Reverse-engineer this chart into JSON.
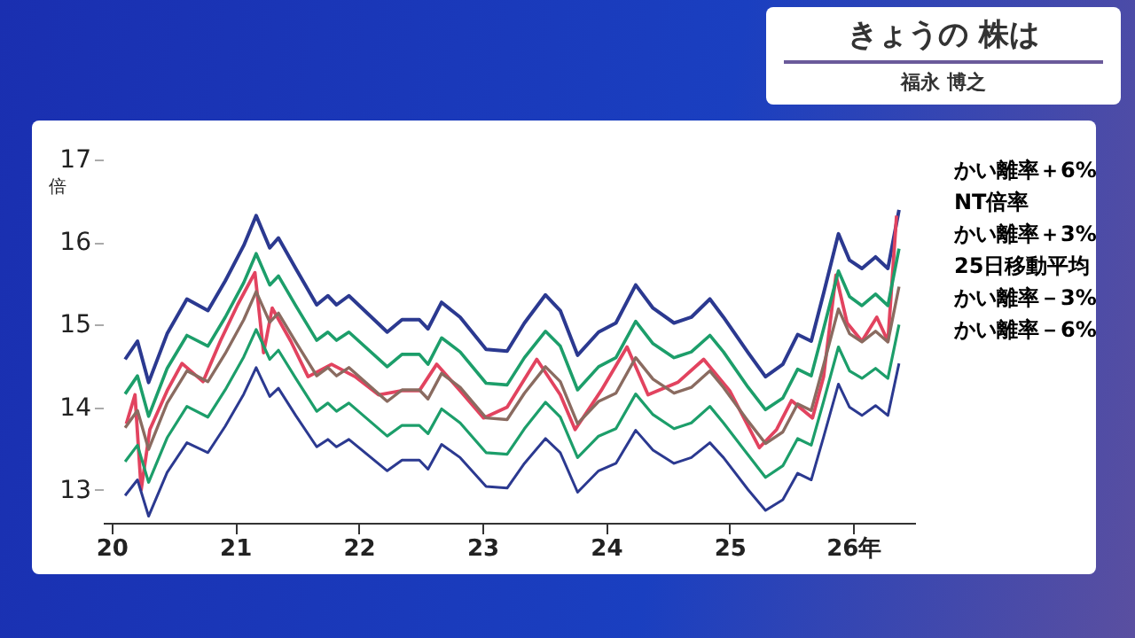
{
  "chart_data": {
    "type": "line",
    "title": "きょうの 株は",
    "subtitle": "福永 博之",
    "ylabel": "倍",
    "xlim": [
      19.93,
      26.5
    ],
    "ylim": [
      12.6,
      17
    ],
    "xticks": [
      20,
      21,
      22,
      23,
      24,
      25,
      {
        "value": 26,
        "label": "26年"
      }
    ],
    "yticks": [
      13,
      14,
      15,
      16,
      17
    ],
    "x": [
      20.11,
      20.21,
      20.3,
      20.45,
      20.61,
      20.78,
      20.92,
      21.07,
      21.17,
      21.28,
      21.35,
      21.49,
      21.66,
      21.75,
      21.82,
      21.92,
      22.23,
      22.35,
      22.49,
      22.56,
      22.67,
      22.82,
      23.03,
      23.2,
      23.34,
      23.51,
      23.63,
      23.77,
      23.94,
      24.08,
      24.24,
      24.38,
      24.55,
      24.69,
      24.84,
      24.95,
      25.15,
      25.29,
      25.43,
      25.55,
      25.66,
      25.76,
      25.88,
      25.97,
      26.07,
      26.18,
      26.28,
      26.37
    ],
    "grid": false,
    "legend": "right",
    "line_style": "solid",
    "marker": "none",
    "series": [
      {
        "name": "かい離率＋6%",
        "color": "#2b3990",
        "values": [
          14.58,
          14.8,
          14.3,
          14.89,
          15.31,
          15.17,
          15.53,
          15.96,
          16.32,
          15.93,
          16.05,
          15.68,
          15.24,
          15.35,
          15.24,
          15.35,
          14.91,
          15.06,
          15.06,
          14.95,
          15.27,
          15.09,
          14.7,
          14.68,
          15.02,
          15.36,
          15.17,
          14.63,
          14.91,
          15.02,
          15.48,
          15.2,
          15.02,
          15.09,
          15.31,
          15.09,
          14.66,
          14.37,
          14.52,
          14.88,
          14.8,
          15.38,
          16.1,
          15.78,
          15.68,
          15.82,
          15.68,
          16.39
        ]
      },
      {
        "name": "NT倍率",
        "color": "#e2435f",
        "x": [
          20.12,
          20.19,
          20.24,
          20.31,
          20.45,
          20.57,
          20.74,
          20.88,
          21.02,
          21.16,
          21.23,
          21.3,
          21.45,
          21.59,
          21.78,
          21.97,
          22.16,
          22.35,
          22.49,
          22.63,
          22.82,
          23.01,
          23.2,
          23.44,
          23.63,
          23.75,
          23.96,
          24.17,
          24.34,
          24.58,
          24.79,
          25.0,
          25.24,
          25.38,
          25.5,
          25.67,
          25.76,
          25.86,
          25.95,
          26.07,
          26.19,
          26.28,
          26.35
        ],
        "values": [
          13.8,
          14.15,
          13.0,
          13.73,
          14.2,
          14.53,
          14.31,
          14.8,
          15.24,
          15.63,
          14.66,
          15.2,
          14.8,
          14.37,
          14.52,
          14.37,
          14.15,
          14.2,
          14.2,
          14.52,
          14.2,
          13.87,
          14.0,
          14.58,
          14.15,
          13.73,
          14.2,
          14.73,
          14.15,
          14.3,
          14.58,
          14.2,
          13.51,
          13.73,
          14.08,
          13.87,
          14.37,
          15.6,
          15.02,
          14.8,
          15.09,
          14.8,
          16.32
        ]
      },
      {
        "name": "かい離率＋3%",
        "color": "#1c9e6a",
        "values": [
          14.16,
          14.38,
          13.89,
          14.47,
          14.87,
          14.74,
          15.09,
          15.51,
          15.86,
          15.48,
          15.59,
          15.23,
          14.81,
          14.91,
          14.81,
          14.91,
          14.49,
          14.64,
          14.64,
          14.52,
          14.84,
          14.67,
          14.29,
          14.27,
          14.6,
          14.92,
          14.74,
          14.21,
          14.49,
          14.6,
          15.04,
          14.77,
          14.6,
          14.67,
          14.87,
          14.67,
          14.24,
          13.97,
          14.11,
          14.46,
          14.38,
          14.95,
          15.65,
          15.34,
          15.23,
          15.37,
          15.23,
          15.92
        ]
      },
      {
        "name": "25日移動平均",
        "color": "#8a6b60",
        "values": [
          13.75,
          13.96,
          13.49,
          14.05,
          14.44,
          14.31,
          14.65,
          15.06,
          15.4,
          15.03,
          15.14,
          14.79,
          14.38,
          14.48,
          14.38,
          14.48,
          14.07,
          14.21,
          14.21,
          14.1,
          14.41,
          14.24,
          13.87,
          13.85,
          14.17,
          14.49,
          14.31,
          13.8,
          14.07,
          14.17,
          14.6,
          14.34,
          14.17,
          14.24,
          14.44,
          14.24,
          13.83,
          13.56,
          13.7,
          14.04,
          13.96,
          14.51,
          15.19,
          14.89,
          14.79,
          14.92,
          14.79,
          15.46
        ]
      },
      {
        "name": "かい離率－3%",
        "color": "#1c9e6a",
        "values": [
          13.34,
          13.54,
          13.09,
          13.63,
          14.01,
          13.88,
          14.21,
          14.61,
          14.94,
          14.58,
          14.69,
          14.35,
          13.95,
          14.05,
          13.95,
          14.05,
          13.65,
          13.78,
          13.78,
          13.68,
          13.98,
          13.81,
          13.45,
          13.43,
          13.74,
          14.06,
          13.88,
          13.39,
          13.65,
          13.74,
          14.16,
          13.91,
          13.74,
          13.81,
          14.01,
          13.81,
          13.42,
          13.15,
          13.29,
          13.62,
          13.54,
          14.07,
          14.73,
          14.44,
          14.35,
          14.47,
          14.35,
          15.0
        ]
      },
      {
        "name": "かい離率－6%",
        "color": "#2b3990",
        "values": [
          12.93,
          13.12,
          12.68,
          13.21,
          13.57,
          13.45,
          13.77,
          14.16,
          14.48,
          14.13,
          14.23,
          13.9,
          13.52,
          13.61,
          13.52,
          13.61,
          13.23,
          13.36,
          13.36,
          13.25,
          13.55,
          13.39,
          13.04,
          13.02,
          13.32,
          13.62,
          13.45,
          12.97,
          13.23,
          13.32,
          13.72,
          13.48,
          13.32,
          13.39,
          13.57,
          13.39,
          13.0,
          12.75,
          12.88,
          13.2,
          13.12,
          13.64,
          14.28,
          14.0,
          13.9,
          14.02,
          13.9,
          14.53
        ]
      }
    ]
  }
}
